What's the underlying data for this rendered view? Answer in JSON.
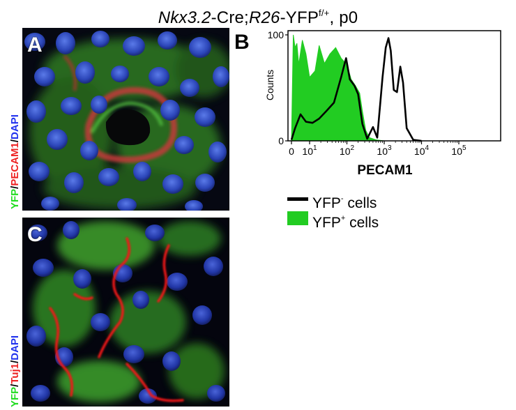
{
  "figure_title": {
    "gene": "Nkx3.2",
    "cre": "-Cre;",
    "reporter": "R26",
    "yfp": "-YFP",
    "yfp_superscript": "f/+",
    "stage": ", p0"
  },
  "panel_a": {
    "letter": "A",
    "stain_labels": [
      {
        "text": "YFP",
        "color": "#22dd22"
      },
      {
        "text": "/",
        "color": "#ffffff"
      },
      {
        "text": "PECAM1",
        "color": "#ee2222"
      },
      {
        "text": "/",
        "color": "#ffffff"
      },
      {
        "text": "DAPI",
        "color": "#2233ee"
      }
    ]
  },
  "panel_b": {
    "letter": "B"
  },
  "panel_c": {
    "letter": "C",
    "stain_labels": [
      {
        "text": "YFP",
        "color": "#22dd22"
      },
      {
        "text": "/",
        "color": "#ffffff"
      },
      {
        "text": "Tuj1",
        "color": "#ee2222"
      },
      {
        "text": "/",
        "color": "#ffffff"
      },
      {
        "text": "DAPI",
        "color": "#2233ee"
      }
    ]
  },
  "chart_data": {
    "type": "area",
    "xlabel": "PECAM1",
    "ylabel": "Counts",
    "x_scale": "biexponential (log above 10)",
    "x_tick_labels": [
      "0",
      "10",
      "10",
      "10",
      "10",
      "10"
    ],
    "x_tick_exponents": [
      "",
      "1",
      "2",
      "3",
      "4",
      "5"
    ],
    "x_tick_values": [
      0,
      10,
      100,
      1000,
      10000,
      100000
    ],
    "y_tick_labels": [
      "0",
      "100"
    ],
    "ylim": [
      0,
      100
    ],
    "series": [
      {
        "name_base": "YFP",
        "name_superscript": "-",
        "name_suffix": " cells",
        "style": "line",
        "color": "#000000",
        "x": [
          0,
          2,
          5,
          8,
          12,
          18,
          28,
          45,
          70,
          95,
          120,
          160,
          200,
          260,
          350,
          500,
          650,
          900,
          1100,
          1300,
          1500,
          1800,
          2200,
          2700,
          3200,
          4000,
          6000,
          10000
        ],
        "y": [
          1,
          12,
          25,
          18,
          17,
          21,
          28,
          36,
          60,
          78,
          58,
          52,
          44,
          16,
          2,
          13,
          3,
          60,
          88,
          97,
          85,
          48,
          46,
          70,
          55,
          12,
          1,
          0
        ]
      },
      {
        "name_base": "YFP",
        "name_superscript": "+",
        "name_suffix": " cells",
        "style": "filled",
        "color": "#22cc22",
        "x": [
          0,
          1,
          2,
          3,
          4,
          6,
          8,
          10,
          14,
          18,
          25,
          35,
          50,
          70,
          100,
          130,
          170,
          220,
          260,
          320,
          400,
          600,
          1000,
          100000
        ],
        "y": [
          0,
          100,
          88,
          92,
          72,
          95,
          82,
          60,
          66,
          90,
          73,
          82,
          88,
          78,
          72,
          58,
          52,
          45,
          28,
          10,
          3,
          1,
          0,
          0
        ]
      }
    ],
    "legend_position": "below"
  }
}
